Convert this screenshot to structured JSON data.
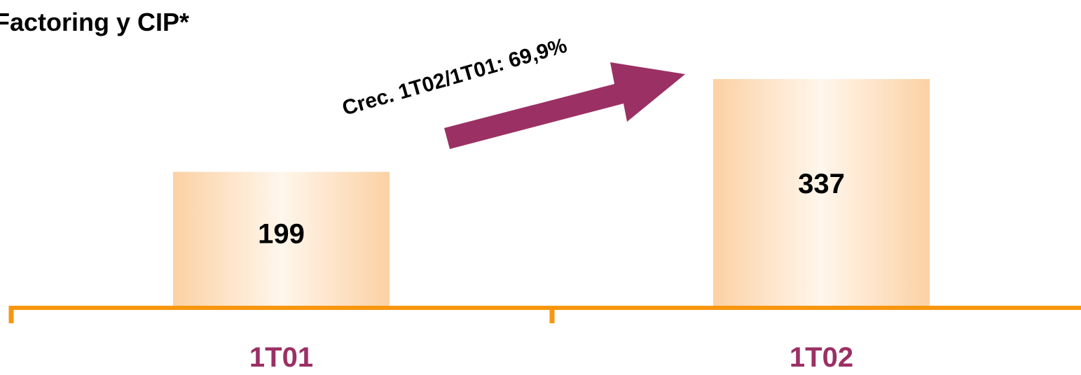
{
  "chart_data": {
    "type": "bar",
    "title": "Factoring y  CIP*",
    "categories": [
      "1T01",
      "1T02"
    ],
    "values": [
      199,
      337
    ],
    "value_labels": [
      "199",
      "337"
    ],
    "annotation": "Crec. 1T02/1T01: 69,9%",
    "ylim": [
      0,
      337
    ],
    "grid": false,
    "legend": "none"
  },
  "colors": {
    "bar_edge": "#fcd1a4",
    "bar_center": "#fff6ec",
    "axis": "#f7960f",
    "category_label": "#9b3064",
    "arrow": "#9b3064",
    "text": "#000000"
  }
}
